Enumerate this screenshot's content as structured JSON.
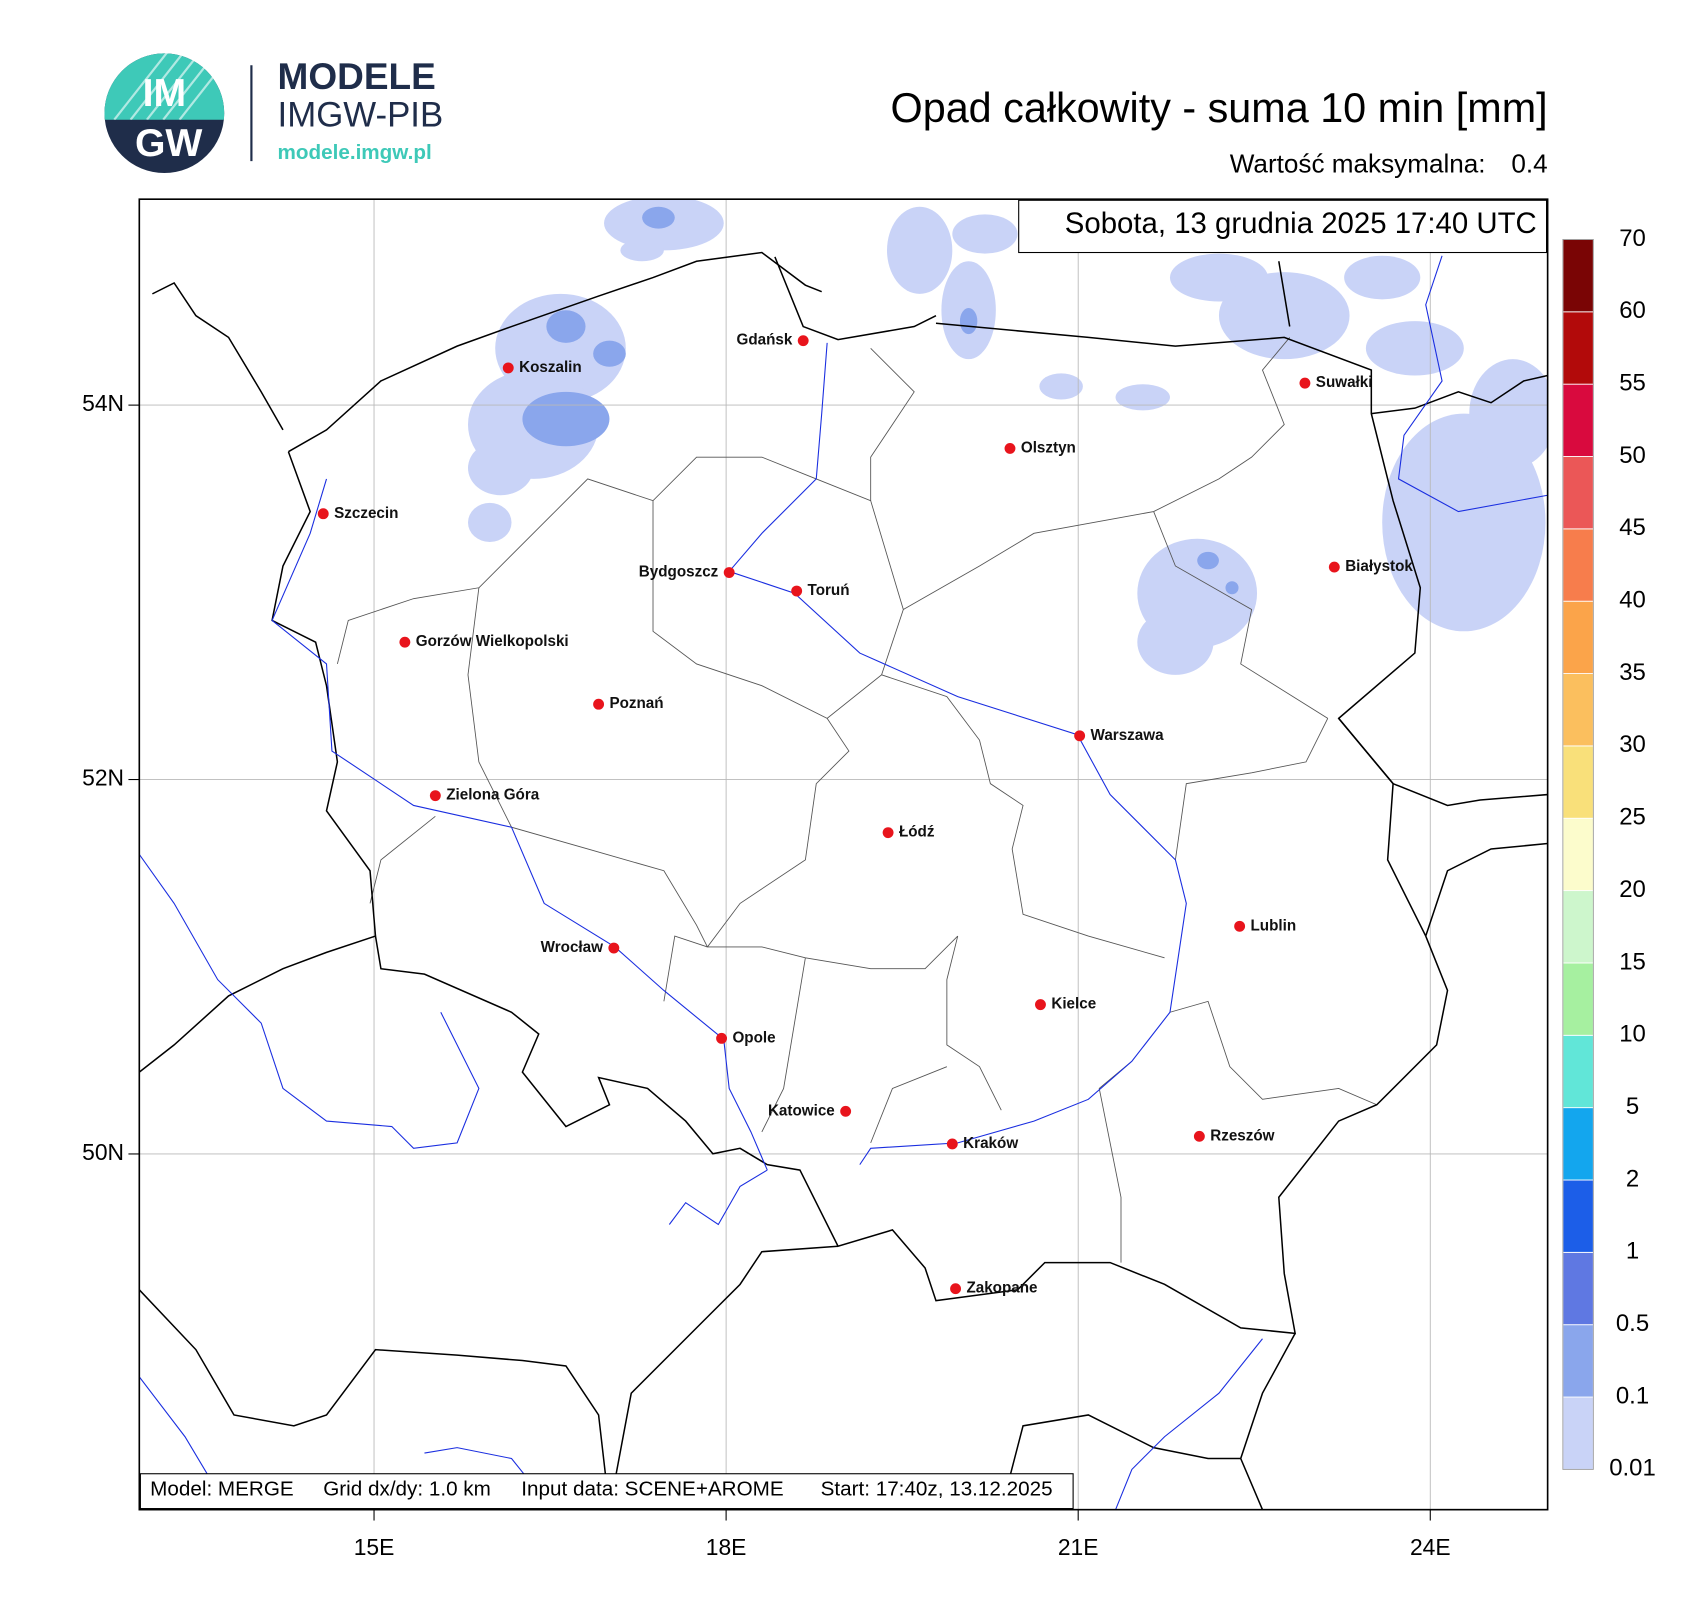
{
  "logo": {
    "mark_top": "IM",
    "mark_bottom": "GW",
    "name": "MODELE",
    "org": "IMGW-PIB",
    "url": "modele.imgw.pl"
  },
  "header": {
    "title": "Opad całkowity - suma 10 min [mm]",
    "max_label": "Wartość maksymalna:",
    "max_value": 0.4
  },
  "map": {
    "date": "Sobota, 13 grudnia 2025 17:40 UTC",
    "info": [
      "Model: MERGE",
      "Grid dx/dy: 1.0 km",
      "Input data: SCENE+AROME",
      "Start: 17:40z, 13.12.2025"
    ],
    "xlim": [
      13,
      25
    ],
    "ylim": [
      48.1,
      55.1
    ],
    "xticks": [
      {
        "value": 15,
        "label": "15E"
      },
      {
        "value": 18,
        "label": "18E"
      },
      {
        "value": 21,
        "label": "21E"
      },
      {
        "value": 24,
        "label": "24E"
      }
    ],
    "yticks": [
      {
        "value": 50,
        "label": "50N"
      },
      {
        "value": 52,
        "label": "52N"
      },
      {
        "value": 54,
        "label": "54N"
      }
    ],
    "grid": true,
    "cities": [
      "Szczecin",
      "Koszalin",
      "Gdańsk",
      "Suwałki",
      "Olsztyn",
      "Białystok",
      "Bydgoszcz",
      "Toruń",
      "Gorzów Wielkopolski",
      "Poznań",
      "Warszawa",
      "Zielona Góra",
      "Łódź",
      "Lublin",
      "Wrocław",
      "Kielce",
      "Opole",
      "Katowice",
      "Kraków",
      "Rzeszów",
      "Zakopane"
    ]
  },
  "colorbar": {
    "levels": [
      0.01,
      0.1,
      0.5,
      1,
      2,
      5,
      10,
      15,
      20,
      25,
      30,
      35,
      40,
      45,
      50,
      55,
      60,
      70
    ],
    "colors": [
      "#c9d3f7",
      "#8aa6ec",
      "#5f78e2",
      "#1c5ee8",
      "#13a6ee",
      "#61e6d8",
      "#a6f0a0",
      "#cdf6cc",
      "#fcfccc",
      "#f9e07a",
      "#fbbf5e",
      "#fba44a",
      "#f77d4c",
      "#eb5757",
      "#d90a3e",
      "#b20a0a",
      "#7a0505"
    ]
  }
}
